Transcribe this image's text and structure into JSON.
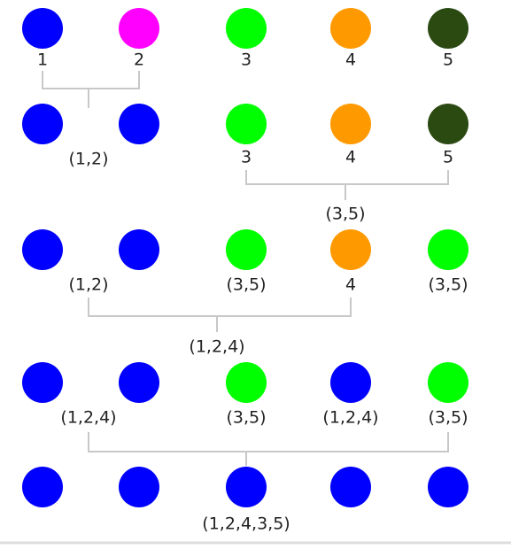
{
  "rows": [
    {
      "colors": [
        "#0000ff",
        "#ff00ff",
        "#00ff00",
        "#ff9900",
        "#2b4a12"
      ],
      "labels": [
        "1",
        "2",
        "3",
        "4",
        "5"
      ]
    },
    {
      "colors": [
        "#0000ff",
        "#0000ff",
        "#00ff00",
        "#ff9900",
        "#2b4a12"
      ],
      "labels": [
        "(1,2)",
        "3",
        "4",
        "5"
      ]
    },
    {
      "colors": [
        "#0000ff",
        "#0000ff",
        "#00ff00",
        "#ff9900",
        "#00ff00"
      ],
      "labels": [
        "(1,2)",
        "(3,5)",
        "4",
        "(3,5)"
      ]
    },
    {
      "colors": [
        "#0000ff",
        "#0000ff",
        "#00ff00",
        "#0000ff",
        "#00ff00"
      ],
      "labels": [
        "(1,2,4)",
        "(3,5)",
        "(1,2,4)",
        "(3,5)"
      ]
    },
    {
      "colors": [
        "#0000ff",
        "#0000ff",
        "#0000ff",
        "#0000ff",
        "#0000ff"
      ],
      "labels": [
        "(1,2,4,3,5)"
      ]
    }
  ],
  "merges": [
    "(3,5)",
    "(1,2,4)"
  ]
}
